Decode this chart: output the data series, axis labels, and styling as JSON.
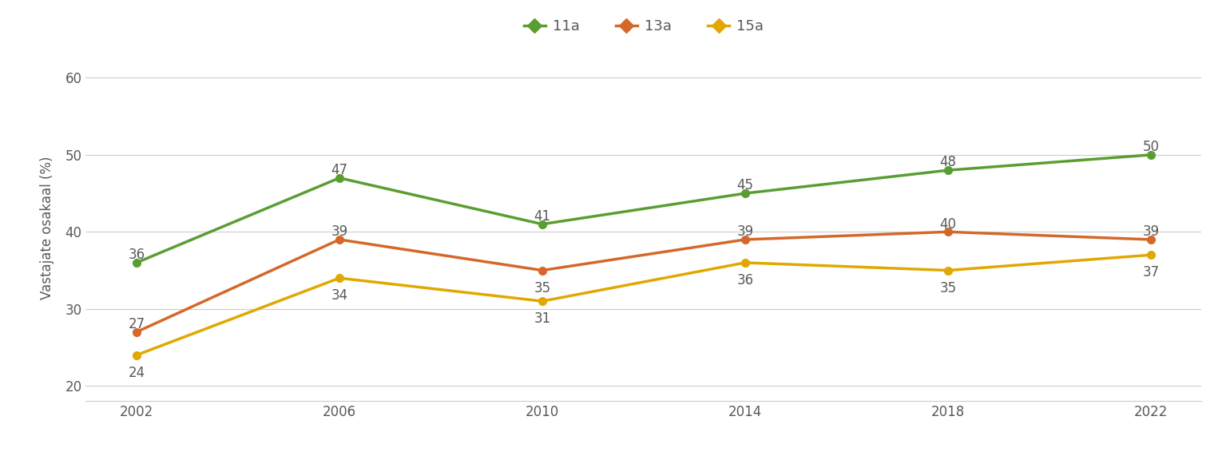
{
  "years": [
    2002,
    2006,
    2010,
    2014,
    2018,
    2022
  ],
  "series": [
    {
      "name": "11a",
      "values": [
        36,
        47,
        41,
        45,
        48,
        50
      ],
      "color": "#5a9e32",
      "label_va": [
        "bottom",
        "bottom",
        "bottom",
        "bottom",
        "bottom",
        "bottom"
      ],
      "label_dy": [
        7,
        7,
        7,
        7,
        7,
        7
      ]
    },
    {
      "name": "13a",
      "values": [
        27,
        39,
        35,
        39,
        40,
        39
      ],
      "color": "#d4682a",
      "label_va": [
        "bottom",
        "bottom",
        "bottom",
        "bottom",
        "bottom",
        "bottom"
      ],
      "label_dy": [
        7,
        7,
        -16,
        7,
        7,
        7
      ]
    },
    {
      "name": "15a",
      "values": [
        24,
        34,
        31,
        36,
        35,
        37
      ],
      "color": "#e0a800",
      "label_va": [
        "bottom",
        "bottom",
        "bottom",
        "bottom",
        "bottom",
        "bottom"
      ],
      "label_dy": [
        -16,
        -16,
        -16,
        -16,
        -16,
        -16
      ]
    }
  ],
  "ylabel": "Vastajate osakaal (%)",
  "ylim": [
    18,
    63
  ],
  "yticks": [
    20,
    30,
    40,
    50,
    60
  ],
  "background_color": "#ffffff",
  "grid_color": "#cccccc",
  "tick_color": "#595959",
  "label_fontsize": 12,
  "axis_fontsize": 12,
  "legend_fontsize": 13
}
